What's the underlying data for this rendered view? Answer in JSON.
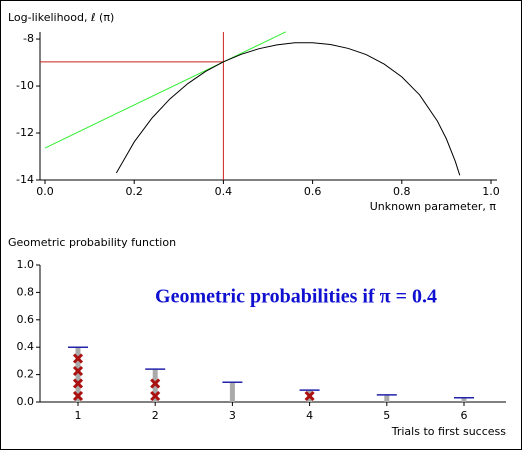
{
  "chart_data": [
    {
      "type": "line",
      "title": "Log-likelihood, ℓ (π)",
      "x_label": "Unknown parameter, π",
      "x": [
        0.16,
        0.2,
        0.24,
        0.28,
        0.32,
        0.36,
        0.4,
        0.44,
        0.48,
        0.52,
        0.56,
        0.6,
        0.64,
        0.68,
        0.72,
        0.76,
        0.8,
        0.84,
        0.88,
        0.9,
        0.92,
        0.93
      ],
      "series": [
        {
          "color": "#000000",
          "values": [
            -13.7,
            -12.38,
            -11.36,
            -10.55,
            -9.9,
            -9.38,
            -8.97,
            -8.65,
            -8.41,
            -8.25,
            -8.16,
            -8.16,
            -8.23,
            -8.4,
            -8.66,
            -9.06,
            -9.61,
            -10.38,
            -11.5,
            -12.25,
            -13.21,
            -13.8
          ]
        }
      ],
      "tangent": {
        "color": "#33ee33",
        "x": [
          0,
          0.54
        ],
        "values": [
          -12.64,
          -7.69
        ]
      },
      "marker": {
        "color": "#cc2222",
        "x": 0.4,
        "y": -8.97
      },
      "xlim": [
        0,
        1
      ],
      "ylim": [
        -14,
        -7.7
      ],
      "xticks": [
        {
          "value": 0,
          "label": "0.0"
        },
        0.2,
        0.4,
        0.6,
        0.8,
        {
          "value": 1,
          "label": "1.0"
        }
      ],
      "yticks": [
        -8,
        -10,
        -12,
        -14
      ]
    },
    {
      "type": "bar",
      "title": "Geometric probability function",
      "x_label": "Trials to first success",
      "annotation": "Geometric probabilities if π = 0.4",
      "categories": [
        "1",
        "2",
        "3",
        "4",
        "5",
        "6"
      ],
      "values": [
        0.4,
        0.24,
        0.144,
        0.0864,
        0.0518,
        0.0311
      ],
      "color": "#aaaaaa",
      "cap_color": "#2222aa",
      "observations": [
        1,
        1,
        1,
        1,
        2,
        2,
        4
      ],
      "observation_color": "#aa1111",
      "ylim": [
        0,
        1
      ],
      "yticks": [
        {
          "value": 0,
          "label": "0.0"
        },
        0.2,
        0.4,
        0.6,
        0.8,
        {
          "value": 1,
          "label": "1.0"
        }
      ]
    }
  ]
}
